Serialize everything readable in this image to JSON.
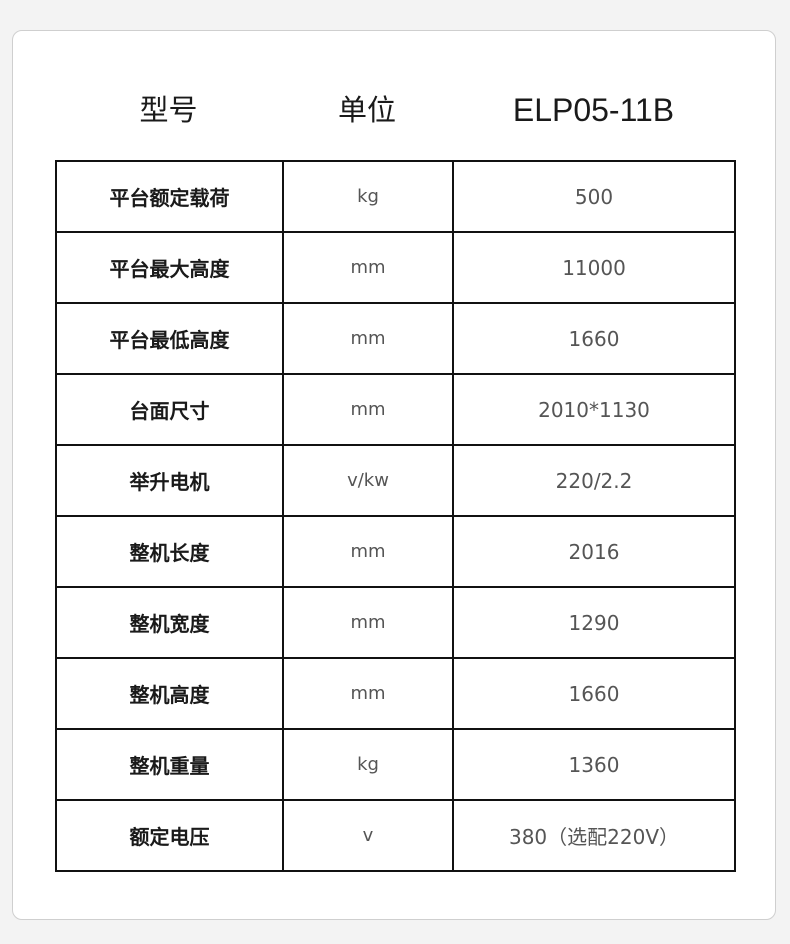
{
  "header": {
    "model_label": "型号",
    "unit_label": "单位",
    "model_value": "ELP05-11B"
  },
  "rows": [
    {
      "name": "平台额定载荷",
      "unit": "kg",
      "value": "500"
    },
    {
      "name": "平台最大高度",
      "unit": "mm",
      "value": "11000"
    },
    {
      "name": "平台最低高度",
      "unit": "mm",
      "value": "1660"
    },
    {
      "name": "台面尺寸",
      "unit": "mm",
      "value": "2010*1130"
    },
    {
      "name": "举升电机",
      "unit": "v/kw",
      "value": "220/2.2"
    },
    {
      "name": "整机长度",
      "unit": "mm",
      "value": "2016"
    },
    {
      "name": "整机宽度",
      "unit": "mm",
      "value": "1290"
    },
    {
      "name": "整机高度",
      "unit": "mm",
      "value": "1660"
    },
    {
      "name": "整机重量",
      "unit": "kg",
      "value": "1360"
    },
    {
      "name": "额定电压",
      "unit": "v",
      "value": "380（选配220V）"
    }
  ]
}
